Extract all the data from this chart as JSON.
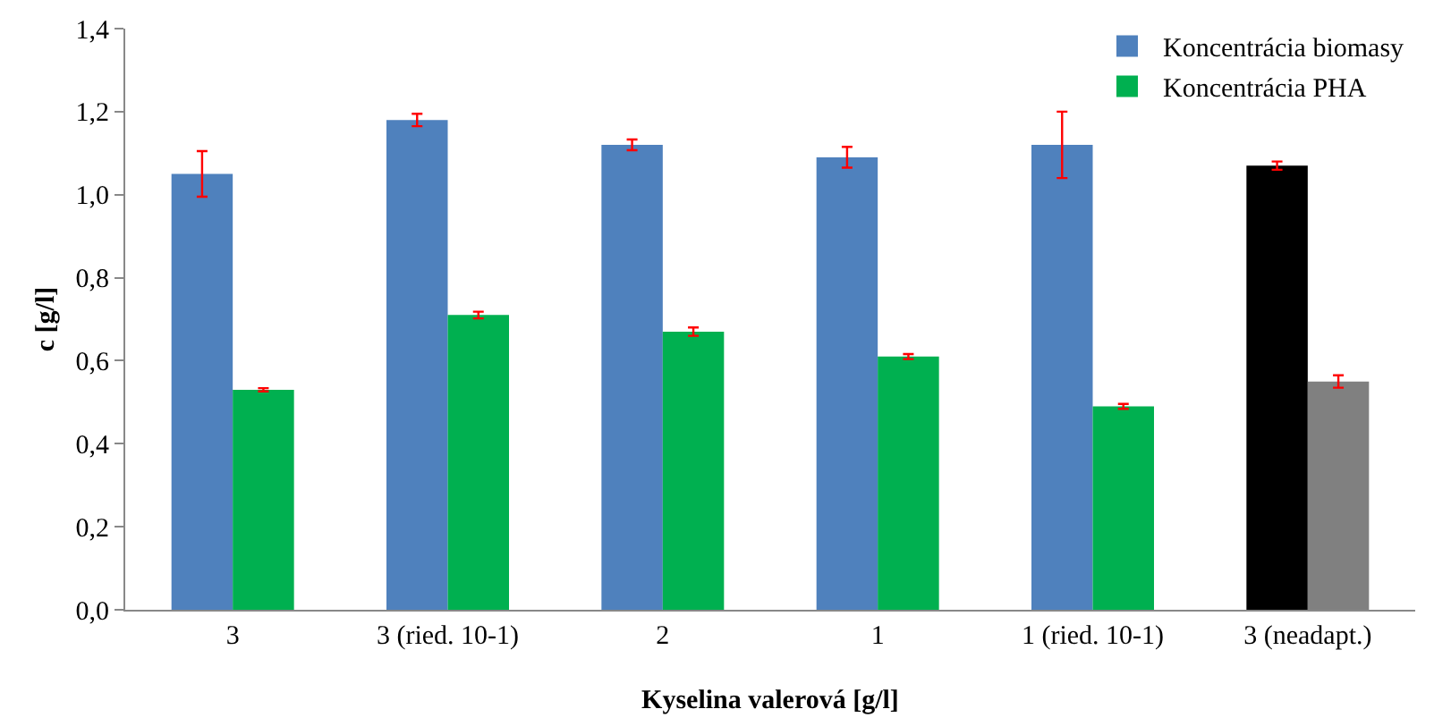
{
  "chart_data": {
    "type": "bar",
    "xlabel": "Kyselina valerová [g/l]",
    "ylabel": "c [g/l]",
    "categories": [
      "3",
      "3 (ried. 10-1)",
      "2",
      "1",
      "1 (ried. 10-1)",
      "3 (neadapt.)"
    ],
    "series": [
      {
        "name": "Koncentrácia biomasy",
        "color": "#4f81bd",
        "colors": [
          null,
          null,
          null,
          null,
          null,
          "#000000"
        ],
        "values": [
          1.05,
          1.18,
          1.12,
          1.09,
          1.12,
          1.07
        ],
        "errors": [
          0.055,
          0.015,
          0.013,
          0.025,
          0.08,
          0.01
        ]
      },
      {
        "name": "Koncentrácia PHA",
        "color": "#00b050",
        "colors": [
          null,
          null,
          null,
          null,
          null,
          "#808080"
        ],
        "values": [
          0.53,
          0.71,
          0.67,
          0.61,
          0.49,
          0.55
        ],
        "errors": [
          0.004,
          0.008,
          0.01,
          0.006,
          0.006,
          0.015
        ]
      }
    ],
    "ylim": [
      0,
      1.4
    ],
    "yticks": [
      {
        "value": 0,
        "label": "0,0"
      },
      {
        "value": 0.2,
        "label": "0,2"
      },
      {
        "value": 0.4,
        "label": "0,4"
      },
      {
        "value": 0.6,
        "label": "0,6"
      },
      {
        "value": 0.8,
        "label": "0,8"
      },
      {
        "value": 1,
        "label": "1,0"
      },
      {
        "value": 1.2,
        "label": "1,2"
      },
      {
        "value": 1.4,
        "label": "1,4"
      }
    ],
    "grid": false,
    "legend": "top right"
  }
}
